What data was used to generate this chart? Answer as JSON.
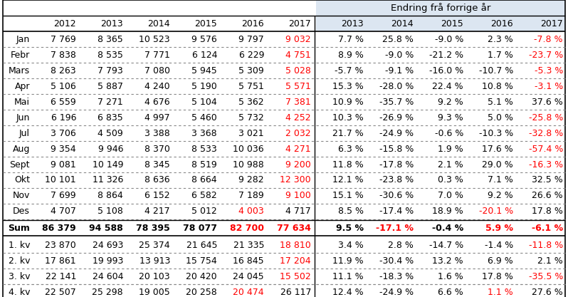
{
  "header_years": [
    "2012",
    "2013",
    "2014",
    "2015",
    "2016",
    "2017"
  ],
  "header_change": [
    "2013",
    "2014",
    "2015",
    "2016",
    "2017"
  ],
  "header_change_title": "Endring frå forrige år",
  "rows": [
    {
      "label": "Jan",
      "vals": [
        "7 769",
        "8 365",
        "10 523",
        "9 576",
        "9 797",
        "9 032"
      ],
      "val_red": [
        false,
        false,
        false,
        false,
        false,
        true
      ],
      "chg": [
        "7.7 %",
        "25.8 %",
        "-9.0 %",
        "2.3 %",
        "-7.8 %"
      ],
      "chg_red": [
        false,
        false,
        false,
        false,
        true
      ],
      "bold": false
    },
    {
      "label": "Febr",
      "vals": [
        "7 838",
        "8 535",
        "7 771",
        "6 124",
        "6 229",
        "4 751"
      ],
      "val_red": [
        false,
        false,
        false,
        false,
        false,
        true
      ],
      "chg": [
        "8.9 %",
        "-9.0 %",
        "-21.2 %",
        "1.7 %",
        "-23.7 %"
      ],
      "chg_red": [
        false,
        false,
        false,
        false,
        true
      ],
      "bold": false
    },
    {
      "label": "Mars",
      "vals": [
        "8 263",
        "7 793",
        "7 080",
        "5 945",
        "5 309",
        "5 028"
      ],
      "val_red": [
        false,
        false,
        false,
        false,
        false,
        true
      ],
      "chg": [
        "-5.7 %",
        "-9.1 %",
        "-16.0 %",
        "-10.7 %",
        "-5.3 %"
      ],
      "chg_red": [
        false,
        false,
        false,
        false,
        true
      ],
      "bold": false
    },
    {
      "label": "Apr",
      "vals": [
        "5 106",
        "5 887",
        "4 240",
        "5 190",
        "5 751",
        "5 571"
      ],
      "val_red": [
        false,
        false,
        false,
        false,
        false,
        true
      ],
      "chg": [
        "15.3 %",
        "-28.0 %",
        "22.4 %",
        "10.8 %",
        "-3.1 %"
      ],
      "chg_red": [
        false,
        false,
        false,
        false,
        true
      ],
      "bold": false
    },
    {
      "label": "Mai",
      "vals": [
        "6 559",
        "7 271",
        "4 676",
        "5 104",
        "5 362",
        "7 381"
      ],
      "val_red": [
        false,
        false,
        false,
        false,
        false,
        true
      ],
      "chg": [
        "10.9 %",
        "-35.7 %",
        "9.2 %",
        "5.1 %",
        "37.6 %"
      ],
      "chg_red": [
        false,
        false,
        false,
        false,
        false
      ],
      "bold": false
    },
    {
      "label": "Jun",
      "vals": [
        "6 196",
        "6 835",
        "4 997",
        "5 460",
        "5 732",
        "4 252"
      ],
      "val_red": [
        false,
        false,
        false,
        false,
        false,
        true
      ],
      "chg": [
        "10.3 %",
        "-26.9 %",
        "9.3 %",
        "5.0 %",
        "-25.8 %"
      ],
      "chg_red": [
        false,
        false,
        false,
        false,
        true
      ],
      "bold": false
    },
    {
      "label": "Jul",
      "vals": [
        "3 706",
        "4 509",
        "3 388",
        "3 368",
        "3 021",
        "2 032"
      ],
      "val_red": [
        false,
        false,
        false,
        false,
        false,
        true
      ],
      "chg": [
        "21.7 %",
        "-24.9 %",
        "-0.6 %",
        "-10.3 %",
        "-32.8 %"
      ],
      "chg_red": [
        false,
        false,
        false,
        false,
        true
      ],
      "bold": false
    },
    {
      "label": "Aug",
      "vals": [
        "9 354",
        "9 946",
        "8 370",
        "8 533",
        "10 036",
        "4 271"
      ],
      "val_red": [
        false,
        false,
        false,
        false,
        false,
        true
      ],
      "chg": [
        "6.3 %",
        "-15.8 %",
        "1.9 %",
        "17.6 %",
        "-57.4 %"
      ],
      "chg_red": [
        false,
        false,
        false,
        false,
        true
      ],
      "bold": false
    },
    {
      "label": "Sept",
      "vals": [
        "9 081",
        "10 149",
        "8 345",
        "8 519",
        "10 988",
        "9 200"
      ],
      "val_red": [
        false,
        false,
        false,
        false,
        false,
        true
      ],
      "chg": [
        "11.8 %",
        "-17.8 %",
        "2.1 %",
        "29.0 %",
        "-16.3 %"
      ],
      "chg_red": [
        false,
        false,
        false,
        false,
        true
      ],
      "bold": false
    },
    {
      "label": "Okt",
      "vals": [
        "10 101",
        "11 326",
        "8 636",
        "8 664",
        "9 282",
        "12 300"
      ],
      "val_red": [
        false,
        false,
        false,
        false,
        false,
        true
      ],
      "chg": [
        "12.1 %",
        "-23.8 %",
        "0.3 %",
        "7.1 %",
        "32.5 %"
      ],
      "chg_red": [
        false,
        false,
        false,
        false,
        false
      ],
      "bold": false
    },
    {
      "label": "Nov",
      "vals": [
        "7 699",
        "8 864",
        "6 152",
        "6 582",
        "7 189",
        "9 100"
      ],
      "val_red": [
        false,
        false,
        false,
        false,
        false,
        true
      ],
      "chg": [
        "15.1 %",
        "-30.6 %",
        "7.0 %",
        "9.2 %",
        "26.6 %"
      ],
      "chg_red": [
        false,
        false,
        false,
        false,
        false
      ],
      "bold": false
    },
    {
      "label": "Des",
      "vals": [
        "4 707",
        "5 108",
        "4 217",
        "5 012",
        "4 003",
        "4 717"
      ],
      "val_red": [
        false,
        false,
        false,
        false,
        true,
        false
      ],
      "chg": [
        "8.5 %",
        "-17.4 %",
        "18.9 %",
        "-20.1 %",
        "17.8 %"
      ],
      "chg_red": [
        false,
        false,
        false,
        true,
        false
      ],
      "bold": false
    },
    {
      "label": "Sum",
      "vals": [
        "86 379",
        "94 588",
        "78 395",
        "78 077",
        "82 700",
        "77 634"
      ],
      "val_red": [
        false,
        false,
        false,
        false,
        true,
        true
      ],
      "chg": [
        "9.5 %",
        "-17.1 %",
        "-0.4 %",
        "5.9 %",
        "-6.1 %"
      ],
      "chg_red": [
        false,
        true,
        false,
        true,
        true
      ],
      "bold": true
    },
    {
      "label": "1. kv",
      "vals": [
        "23 870",
        "24 693",
        "25 374",
        "21 645",
        "21 335",
        "18 810"
      ],
      "val_red": [
        false,
        false,
        false,
        false,
        false,
        true
      ],
      "chg": [
        "3.4 %",
        "2.8 %",
        "-14.7 %",
        "-1.4 %",
        "-11.8 %"
      ],
      "chg_red": [
        false,
        false,
        false,
        false,
        true
      ],
      "bold": false
    },
    {
      "label": "2. kv",
      "vals": [
        "17 861",
        "19 993",
        "13 913",
        "15 754",
        "16 845",
        "17 204"
      ],
      "val_red": [
        false,
        false,
        false,
        false,
        false,
        true
      ],
      "chg": [
        "11.9 %",
        "-30.4 %",
        "13.2 %",
        "6.9 %",
        "2.1 %"
      ],
      "chg_red": [
        false,
        false,
        false,
        false,
        false
      ],
      "bold": false
    },
    {
      "label": "3. kv",
      "vals": [
        "22 141",
        "24 604",
        "20 103",
        "20 420",
        "24 045",
        "15 502"
      ],
      "val_red": [
        false,
        false,
        false,
        false,
        false,
        true
      ],
      "chg": [
        "11.1 %",
        "-18.3 %",
        "1.6 %",
        "17.8 %",
        "-35.5 %"
      ],
      "chg_red": [
        false,
        false,
        false,
        false,
        true
      ],
      "bold": false
    },
    {
      "label": "4. kv",
      "vals": [
        "22 507",
        "25 298",
        "19 005",
        "20 258",
        "20 474",
        "26 117"
      ],
      "val_red": [
        false,
        false,
        false,
        false,
        true,
        false
      ],
      "chg": [
        "12.4 %",
        "-24.9 %",
        "6.6 %",
        "1.1 %",
        "27.6 %"
      ],
      "chg_red": [
        false,
        false,
        false,
        true,
        false
      ],
      "bold": false
    }
  ],
  "bg_color": "#ffffff",
  "red_color": "#ff0000",
  "black_color": "#000000",
  "change_bg": "#dce6f1",
  "line_solid": "#000000",
  "line_dash": "#888888"
}
